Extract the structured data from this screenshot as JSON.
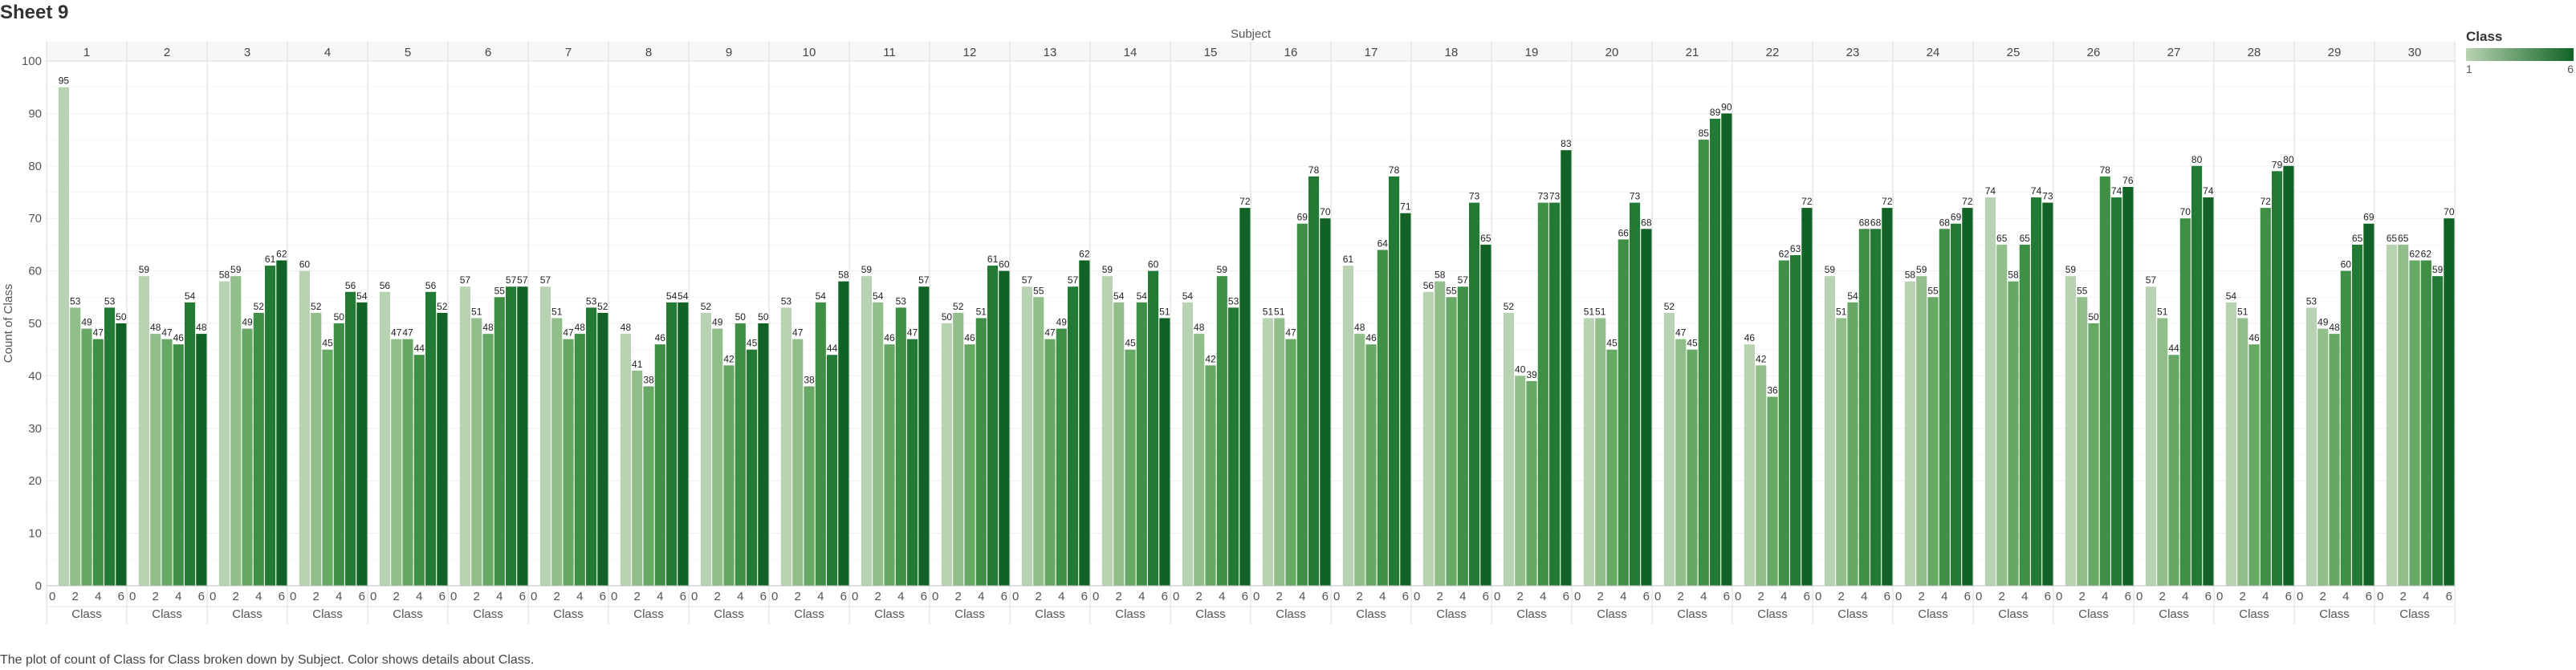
{
  "sheet_title": "Sheet 9",
  "caption": "The plot of count of Class for Class broken down by Subject.  Color shows details about Class.",
  "legend": {
    "title": "Class",
    "min_label": "1",
    "max_label": "6"
  },
  "colors": [
    "#b8d3b1",
    "#90bf8a",
    "#68a865",
    "#3f8f45",
    "#237a35",
    "#116325"
  ],
  "chart_data": {
    "type": "bar",
    "column_header_title": "Subject",
    "ylabel": "Count of Class",
    "xlabel": "Class",
    "ylim": [
      0,
      100
    ],
    "y_ticks": [
      0,
      10,
      20,
      30,
      40,
      50,
      60,
      70,
      80,
      90,
      100
    ],
    "x_ticks": [
      "0",
      "2",
      "4",
      "6"
    ],
    "classes": [
      1,
      2,
      3,
      4,
      5,
      6
    ],
    "subjects": [
      {
        "name": "1",
        "values": [
          95,
          53,
          49,
          47,
          53,
          50
        ]
      },
      {
        "name": "2",
        "values": [
          59,
          48,
          47,
          46,
          54,
          48
        ]
      },
      {
        "name": "3",
        "values": [
          58,
          59,
          49,
          52,
          61,
          62
        ]
      },
      {
        "name": "4",
        "values": [
          60,
          52,
          45,
          50,
          56,
          54
        ]
      },
      {
        "name": "5",
        "values": [
          56,
          47,
          47,
          44,
          56,
          52
        ]
      },
      {
        "name": "6",
        "values": [
          57,
          51,
          48,
          55,
          57,
          57
        ]
      },
      {
        "name": "7",
        "values": [
          57,
          51,
          47,
          48,
          53,
          52
        ]
      },
      {
        "name": "8",
        "values": [
          48,
          41,
          38,
          46,
          54,
          54
        ]
      },
      {
        "name": "9",
        "values": [
          52,
          49,
          42,
          50,
          45,
          50
        ]
      },
      {
        "name": "10",
        "values": [
          53,
          47,
          38,
          54,
          44,
          58
        ]
      },
      {
        "name": "11",
        "values": [
          59,
          54,
          46,
          53,
          47,
          57
        ]
      },
      {
        "name": "12",
        "values": [
          50,
          52,
          46,
          51,
          61,
          60
        ]
      },
      {
        "name": "13",
        "values": [
          57,
          55,
          47,
          49,
          57,
          62
        ]
      },
      {
        "name": "14",
        "values": [
          59,
          54,
          45,
          54,
          60,
          51
        ]
      },
      {
        "name": "15",
        "values": [
          54,
          48,
          42,
          59,
          53,
          72
        ]
      },
      {
        "name": "16",
        "values": [
          51,
          51,
          47,
          69,
          78,
          70
        ]
      },
      {
        "name": "17",
        "values": [
          61,
          48,
          46,
          64,
          78,
          71
        ]
      },
      {
        "name": "18",
        "values": [
          56,
          58,
          55,
          57,
          73,
          65
        ]
      },
      {
        "name": "19",
        "values": [
          52,
          40,
          39,
          73,
          73,
          83
        ]
      },
      {
        "name": "20",
        "values": [
          51,
          51,
          45,
          66,
          73,
          68
        ]
      },
      {
        "name": "21",
        "values": [
          52,
          47,
          45,
          85,
          89,
          90
        ]
      },
      {
        "name": "22",
        "values": [
          46,
          42,
          36,
          62,
          63,
          72
        ]
      },
      {
        "name": "23",
        "values": [
          59,
          51,
          54,
          68,
          68,
          72
        ]
      },
      {
        "name": "24",
        "values": [
          58,
          59,
          55,
          68,
          69,
          72
        ]
      },
      {
        "name": "25",
        "values": [
          74,
          65,
          58,
          65,
          74,
          73
        ]
      },
      {
        "name": "26",
        "values": [
          59,
          55,
          50,
          78,
          74,
          76
        ]
      },
      {
        "name": "27",
        "values": [
          57,
          51,
          44,
          70,
          80,
          74
        ]
      },
      {
        "name": "28",
        "values": [
          54,
          51,
          46,
          72,
          79,
          80
        ]
      },
      {
        "name": "29",
        "values": [
          53,
          49,
          48,
          60,
          65,
          69
        ]
      },
      {
        "name": "30",
        "values": [
          65,
          65,
          62,
          62,
          59,
          70
        ]
      }
    ]
  }
}
